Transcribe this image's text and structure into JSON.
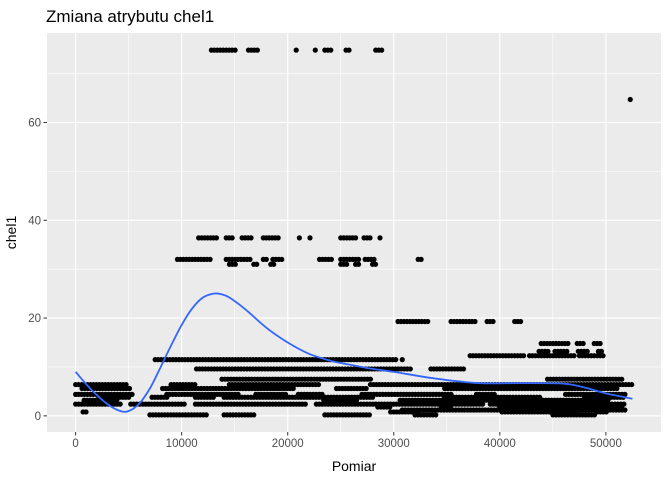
{
  "chart_data": {
    "type": "scatter",
    "title": "Zmiana atrybutu chel1",
    "xlabel": "Pomiar",
    "ylabel": "chel1",
    "xlim": [
      -2700,
      55200
    ],
    "ylim": [
      -3.3,
      78.3
    ],
    "x_ticks": [
      0,
      10000,
      20000,
      30000,
      40000,
      50000
    ],
    "x_tick_labels": [
      "0",
      "10000",
      "20000",
      "30000",
      "40000",
      "50000"
    ],
    "y_ticks": [
      0,
      20,
      40,
      60
    ],
    "y_tick_labels": [
      "0",
      "20",
      "40",
      "60"
    ],
    "grid": true,
    "legend": "none",
    "colors": {
      "panel": "#ebebeb",
      "grid_major": "#ffffff",
      "points": "#000000",
      "smooth": "#3366ff"
    },
    "point_bands": [
      {
        "y": 74.8,
        "ranges": [
          [
            12800,
            15200
          ],
          [
            16300,
            17200
          ],
          [
            20700,
            20900
          ],
          [
            22500,
            22700
          ],
          [
            23500,
            24200
          ],
          [
            25500,
            25800
          ],
          [
            28300,
            29000
          ]
        ]
      },
      {
        "y": 64.7,
        "ranges": [
          [
            52200,
            52400
          ]
        ]
      },
      {
        "y": 36.4,
        "ranges": [
          [
            11600,
            13500
          ],
          [
            14200,
            15000
          ],
          [
            15700,
            16800
          ],
          [
            17700,
            19300
          ],
          [
            21000,
            21200
          ],
          [
            22000,
            22200
          ],
          [
            25000,
            26600
          ],
          [
            27200,
            28000
          ],
          [
            28600,
            28800
          ]
        ]
      },
      {
        "y": 32.0,
        "ranges": [
          [
            9600,
            12800
          ],
          [
            14200,
            16700
          ],
          [
            17700,
            18100
          ],
          [
            18600,
            19500
          ],
          [
            23000,
            24200
          ],
          [
            25000,
            26800
          ],
          [
            27300,
            28200
          ],
          [
            32300,
            32600
          ]
        ]
      },
      {
        "y": 31.0,
        "ranges": [
          [
            14500,
            15100
          ],
          [
            16800,
            17300
          ],
          [
            18400,
            18800
          ],
          [
            25000,
            25800
          ],
          [
            26400,
            26800
          ],
          [
            28000,
            28400
          ]
        ]
      },
      {
        "y": 19.3,
        "ranges": [
          [
            30400,
            33200
          ],
          [
            35400,
            36800
          ],
          [
            37100,
            37900
          ],
          [
            38800,
            39600
          ],
          [
            41400,
            42000
          ]
        ]
      },
      {
        "y": 14.8,
        "ranges": [
          [
            43900,
            46600
          ],
          [
            47300,
            47900
          ],
          [
            48900,
            49700
          ]
        ]
      },
      {
        "y": 13.2,
        "ranges": [
          [
            43700,
            44800
          ],
          [
            45200,
            46400
          ],
          [
            47400,
            48300
          ],
          [
            49300,
            49700
          ]
        ]
      },
      {
        "y": 12.3,
        "ranges": [
          [
            37200,
            42500
          ],
          [
            42800,
            47000
          ],
          [
            47500,
            49800
          ]
        ]
      },
      {
        "y": 11.5,
        "ranges": [
          [
            7500,
            30200
          ],
          [
            30700,
            30900
          ]
        ]
      },
      {
        "y": 9.6,
        "ranges": [
          [
            11400,
            31800
          ],
          [
            33500,
            36700
          ]
        ]
      },
      {
        "y": 7.5,
        "ranges": [
          [
            13800,
            27800
          ],
          [
            44500,
            51600
          ]
        ]
      },
      {
        "y": 6.4,
        "ranges": [
          [
            0,
            5000
          ],
          [
            9000,
            11500
          ],
          [
            14500,
            23000
          ],
          [
            27800,
            52700
          ]
        ]
      },
      {
        "y": 5.6,
        "ranges": [
          [
            600,
            5200
          ],
          [
            8200,
            20600
          ],
          [
            24600,
            27600
          ],
          [
            34800,
            51200
          ]
        ]
      },
      {
        "y": 4.4,
        "ranges": [
          [
            0,
            5500
          ],
          [
            8600,
            15500
          ],
          [
            17000,
            20000
          ],
          [
            21000,
            23500
          ],
          [
            27000,
            35600
          ],
          [
            37800,
            39500
          ],
          [
            46200,
            51800
          ]
        ]
      },
      {
        "y": 3.8,
        "ranges": [
          [
            2200,
            5200
          ],
          [
            7200,
            8800
          ],
          [
            11300,
            13000
          ],
          [
            14000,
            28000
          ],
          [
            34800,
            44000
          ],
          [
            48000,
            51800
          ]
        ]
      },
      {
        "y": 3.2,
        "ranges": [
          [
            800,
            4000
          ],
          [
            23400,
            26700
          ],
          [
            30600,
            50200
          ]
        ]
      },
      {
        "y": 2.4,
        "ranges": [
          [
            0,
            4200
          ],
          [
            5200,
            10400
          ],
          [
            11300,
            21900
          ],
          [
            22700,
            38500
          ],
          [
            39100,
            51700
          ]
        ]
      },
      {
        "y": 1.8,
        "ranges": [
          [
            28500,
            29700
          ],
          [
            34500,
            35500
          ],
          [
            40000,
            51500
          ]
        ]
      },
      {
        "y": 1.2,
        "ranges": [
          [
            30800,
            51800
          ]
        ]
      },
      {
        "y": 0.8,
        "ranges": [
          [
            700,
            1100
          ],
          [
            29700,
            32400
          ],
          [
            40200,
            47400
          ],
          [
            49200,
            50200
          ]
        ]
      },
      {
        "y": 0.2,
        "ranges": [
          [
            7000,
            12500
          ],
          [
            14000,
            16800
          ],
          [
            23500,
            27800
          ],
          [
            32000,
            34000
          ],
          [
            45000,
            49000
          ]
        ]
      }
    ],
    "smooth": {
      "x": [
        0,
        1500,
        3000,
        4200,
        5000,
        6000,
        7000,
        8000,
        9000,
        10000,
        11000,
        12000,
        13000,
        13700,
        14500,
        16000,
        18000,
        20000,
        22000,
        24000,
        26000,
        28000,
        30000,
        34000,
        38000,
        42000,
        46000,
        48000,
        50000,
        52500
      ],
      "y": [
        9.0,
        5.3,
        2.4,
        1.0,
        1.0,
        2.5,
        5.6,
        9.9,
        14.4,
        18.6,
        22.0,
        24.2,
        25.0,
        24.9,
        24.2,
        21.8,
        18.0,
        15.0,
        12.7,
        11.3,
        10.4,
        9.6,
        9.0,
        7.6,
        6.7,
        6.7,
        6.6,
        5.8,
        4.6,
        3.5
      ]
    }
  }
}
